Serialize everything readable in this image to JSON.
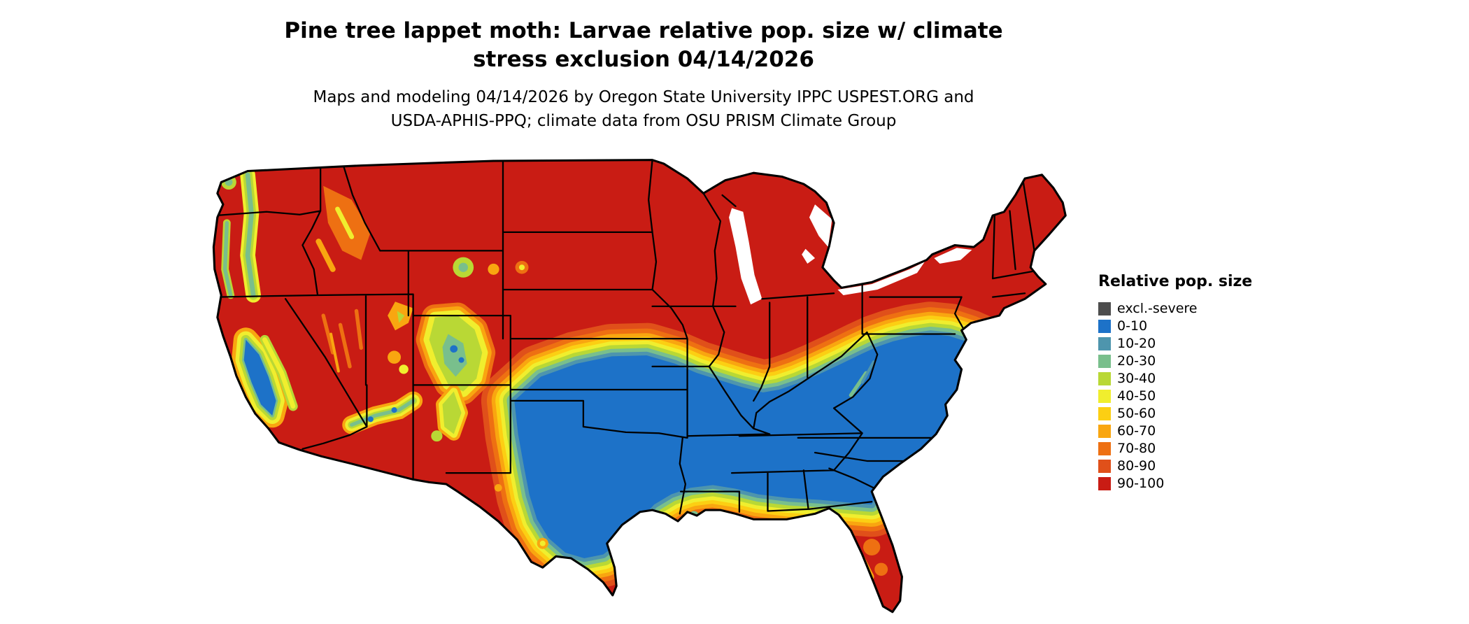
{
  "title": {
    "line1": "Pine tree lappet moth: Larvae relative pop. size w/ climate",
    "line2": "stress exclusion 04/14/2026"
  },
  "subtitle": {
    "line1": "Maps and modeling 04/14/2026 by Oregon State University IPPC USPEST.ORG and",
    "line2": "USDA-APHIS-PPQ; climate data from OSU PRISM Climate Group"
  },
  "legend": {
    "title": "Relative pop. size",
    "items": [
      {
        "label": "excl.-severe",
        "color": "#4d4d4d"
      },
      {
        "label": "0-10",
        "color": "#1d72c8"
      },
      {
        "label": "10-20",
        "color": "#4e95ad"
      },
      {
        "label": "20-30",
        "color": "#79bf8c"
      },
      {
        "label": "30-40",
        "color": "#b9d835"
      },
      {
        "label": "40-50",
        "color": "#f0ee2e"
      },
      {
        "label": "50-60",
        "color": "#fccf13"
      },
      {
        "label": "60-70",
        "color": "#f9a610"
      },
      {
        "label": "70-80",
        "color": "#ee7012"
      },
      {
        "label": "80-90",
        "color": "#e0501a"
      },
      {
        "label": "90-100",
        "color": "#c91c14"
      }
    ]
  },
  "colors": {
    "background": "#ffffff",
    "outline": "#000000",
    "water": "#ffffff"
  }
}
